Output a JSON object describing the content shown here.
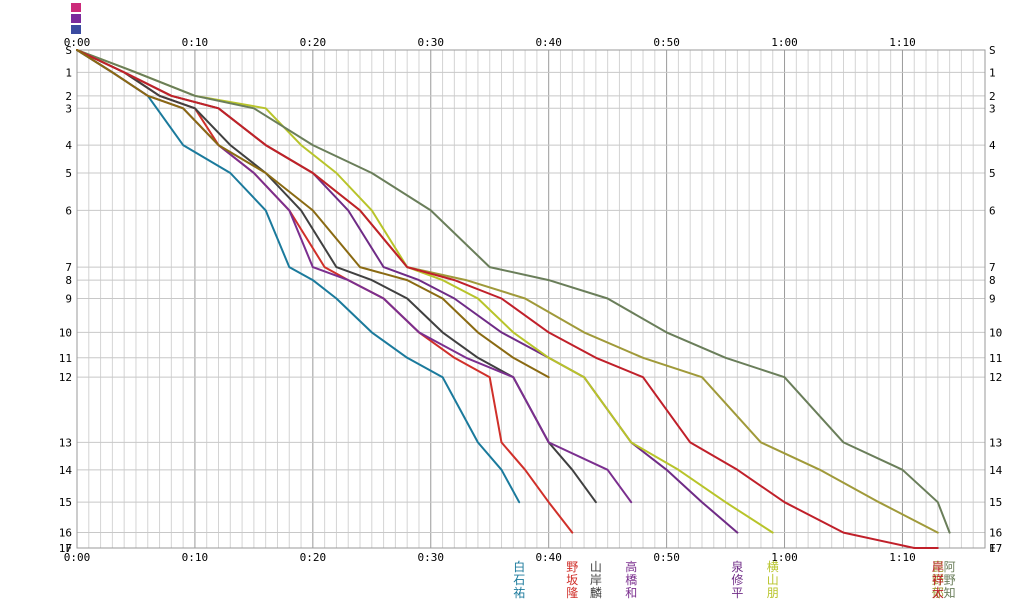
{
  "chart_data": {
    "type": "line",
    "title": "",
    "x_axis": {
      "ticks": [
        "0:00",
        "0:10",
        "0:20",
        "0:30",
        "0:40",
        "0:50",
        "1:00",
        "1:10"
      ],
      "tick_minutes": [
        0,
        10,
        20,
        30,
        40,
        50,
        60,
        70
      ],
      "range_minutes": [
        0,
        77
      ],
      "grid_minor_minutes": 1
    },
    "y_axis": {
      "labels": [
        "S",
        "1",
        "2",
        "3",
        "4",
        "5",
        "6",
        "7",
        "8",
        "9",
        "10",
        "11",
        "12",
        "13",
        "14",
        "15",
        "16",
        "17",
        "F"
      ],
      "label_positions": [
        0,
        1,
        2,
        3,
        4,
        5,
        6,
        7,
        8,
        9,
        10,
        11,
        12,
        13,
        14,
        15,
        16,
        17,
        18
      ],
      "control_ratio": [
        0,
        0.045,
        0.092,
        0.117,
        0.191,
        0.247,
        0.322,
        0.436,
        0.462,
        0.499,
        0.567,
        0.618,
        0.657,
        0.788,
        0.843,
        0.908,
        0.969,
        1.0,
        1.0
      ],
      "grid": true,
      "inverted": true
    },
    "series": [
      {
        "name": "白石祐",
        "color": "#1b7a9c",
        "x": [
          0,
          3,
          6,
          9,
          13,
          16,
          18,
          20,
          22,
          25,
          28,
          31,
          34,
          36,
          37.5
        ],
        "y": [
          0,
          1,
          2,
          4,
          5,
          6,
          7,
          8,
          9,
          10,
          11,
          12,
          13,
          14,
          15
        ]
      },
      {
        "name": "野坂隆",
        "color": "#d0302a",
        "x": [
          0,
          4,
          7,
          10,
          12,
          15,
          18,
          21,
          23,
          26,
          29,
          32,
          35,
          36,
          38,
          40,
          42
        ],
        "y": [
          0,
          1,
          2,
          3,
          4,
          5,
          6,
          7,
          8,
          9,
          10,
          11,
          12,
          13,
          14,
          15,
          16
        ]
      },
      {
        "name": "山岸麟",
        "color": "#404040",
        "x": [
          0,
          4,
          7,
          10,
          13,
          16,
          19,
          22,
          25,
          28,
          31,
          34,
          37,
          40,
          42,
          44
        ],
        "y": [
          0,
          1,
          2,
          3,
          4,
          5,
          6,
          7,
          8,
          9,
          10,
          11,
          12,
          13,
          14,
          15
        ]
      },
      {
        "name": "高橋和",
        "color": "#7b2f8f",
        "x": [
          0,
          3,
          6,
          9,
          12,
          15,
          18,
          20,
          23,
          26,
          29,
          33,
          37,
          40,
          45,
          47
        ],
        "y": [
          0,
          1,
          2,
          3,
          4,
          5,
          6,
          7,
          8,
          9,
          10,
          11,
          12,
          13,
          14,
          15
        ]
      },
      {
        "name": "泉修平",
        "color": "#6f2b86",
        "x": [
          0,
          4,
          8,
          12,
          16,
          20,
          23,
          26,
          29,
          32,
          36,
          40,
          43,
          47,
          50,
          53,
          56
        ],
        "y": [
          0,
          1,
          2,
          3,
          4,
          5,
          6,
          7,
          8,
          9,
          10,
          11,
          12,
          13,
          14,
          15,
          16
        ]
      },
      {
        "name": "横山朋",
        "color": "#b8c42a",
        "x": [
          0,
          5,
          10,
          16,
          19,
          22,
          25,
          28,
          31,
          34,
          37,
          40,
          43,
          47,
          51,
          55,
          59
        ],
        "y": [
          0,
          1,
          2,
          3,
          4,
          5,
          6,
          7,
          8,
          9,
          10,
          11,
          12,
          13,
          14,
          15,
          16
        ]
      },
      {
        "name": "昆野郁",
        "color": "#a09a3a",
        "x": [
          0,
          4,
          8,
          12,
          16,
          20,
          24,
          28,
          33,
          38,
          43,
          48,
          53,
          58,
          63,
          68,
          73
        ],
        "y": [
          0,
          1,
          2,
          3,
          4,
          5,
          6,
          7,
          8,
          9,
          10,
          11,
          12,
          13,
          14,
          15,
          16
        ]
      },
      {
        "name": "阿野知",
        "color": "#6a7e5a",
        "x": [
          0,
          5,
          10,
          15,
          20,
          25,
          30,
          35,
          40,
          45,
          50,
          55,
          60,
          65,
          70,
          73,
          74
        ],
        "y": [
          0,
          1,
          2,
          3,
          4,
          5,
          6,
          7,
          8,
          9,
          10,
          11,
          12,
          13,
          14,
          15,
          16
        ]
      },
      {
        "name": "岸祥太",
        "color": "#c0202a",
        "x": [
          0,
          4,
          8,
          12,
          16,
          20,
          24,
          28,
          32,
          36,
          40,
          44,
          48,
          52,
          56,
          60,
          65,
          71,
          73
        ],
        "y": [
          0,
          1,
          2,
          3,
          4,
          5,
          6,
          7,
          8,
          9,
          10,
          11,
          12,
          13,
          14,
          15,
          16,
          17,
          18
        ]
      },
      {
        "name": "",
        "color": "#8a6a12",
        "x": [
          0,
          3,
          6,
          9,
          12,
          16,
          20,
          24,
          28,
          31,
          34,
          37,
          40
        ],
        "y": [
          0,
          1,
          2,
          3,
          4,
          5,
          6,
          7,
          8,
          9,
          10,
          11,
          12
        ]
      }
    ]
  },
  "runners": [
    {
      "name": "白石祐",
      "chars": [
        "白",
        "石",
        "祐"
      ],
      "color": "#1b7a9c"
    },
    {
      "name": "野坂隆",
      "chars": [
        "野",
        "坂",
        "隆"
      ],
      "color": "#d0302a"
    },
    {
      "name": "山岸麟",
      "chars": [
        "山",
        "岸",
        "麟"
      ],
      "color": "#404040"
    },
    {
      "name": "高橋和",
      "chars": [
        "高",
        "橋",
        "和"
      ],
      "color": "#7b2f8f"
    },
    {
      "name": "泉修平",
      "chars": [
        "泉",
        "修",
        "平"
      ],
      "color": "#6f2b86"
    },
    {
      "name": "横山朋",
      "chars": [
        "横",
        "山",
        "朋"
      ],
      "color": "#b8c42a"
    },
    {
      "name": "昆野郁",
      "chars": [
        "昆",
        "野",
        "郁"
      ],
      "color": "#a09a3a"
    },
    {
      "name": "阿野知",
      "chars": [
        "阿",
        "野",
        "知"
      ],
      "color": "#6a7e5a"
    },
    {
      "name": "岸祥太",
      "chars": [
        "岸",
        "祥",
        "太"
      ],
      "color": "#c0202a"
    }
  ],
  "logo_colors": [
    "#cc2a7a",
    "#7a2a9c",
    "#3a4aa0"
  ]
}
